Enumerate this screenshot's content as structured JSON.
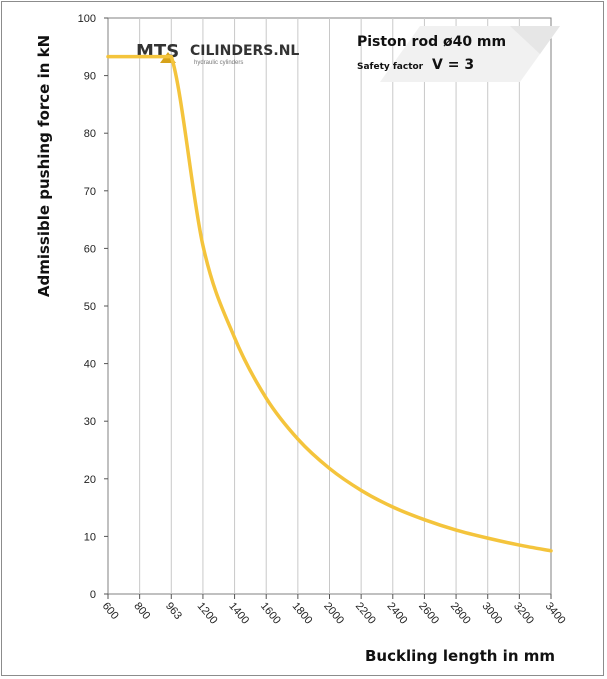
{
  "chart_data": {
    "type": "line",
    "x_ticks": [
      600,
      800,
      963,
      1200,
      1400,
      1600,
      1800,
      2000,
      2200,
      2400,
      2600,
      2800,
      3000,
      3200,
      3400
    ],
    "y_ticks": [
      0,
      10,
      20,
      30,
      40,
      50,
      60,
      70,
      80,
      90,
      100
    ],
    "xlim": [
      600,
      3400
    ],
    "ylim": [
      0,
      100
    ],
    "x_tick_labels": [
      "600",
      "800",
      "963",
      "1200",
      "1400",
      "1600",
      "1800",
      "2000",
      "2200",
      "2400",
      "2600",
      "2800",
      "3000",
      "3200",
      "3400"
    ],
    "y_tick_labels": [
      "0",
      "10",
      "20",
      "30",
      "40",
      "50",
      "60",
      "70",
      "80",
      "90",
      "100"
    ],
    "xlabel": "Buckling length in mm",
    "ylabel": "Admissible pushing force in kN",
    "grid": "vertical",
    "series": [
      {
        "color": "#f4c43c",
        "x": [
          600,
          800,
          963,
          1200,
          1400,
          1600,
          1800,
          2000,
          2200,
          2400,
          2600,
          2800,
          3000,
          3200,
          3400
        ],
        "y": [
          93.3,
          93.3,
          93.3,
          60.5,
          44.5,
          34.0,
          26.9,
          21.8,
          18.0,
          15.1,
          12.9,
          11.1,
          9.7,
          8.5,
          7.5
        ]
      }
    ],
    "annotation": {
      "line1": "Piston rod ø40 mm",
      "line2_small": "Safety factor",
      "line2_big": "V = 3"
    }
  },
  "logo": {
    "left_text": "MTS",
    "right_text": "CILINDERS.NL",
    "tagline": "hydraulic cylinders"
  },
  "colors": {
    "curve": "#f4c43c",
    "grid": "#c8c8c8",
    "axis": "#555555"
  }
}
